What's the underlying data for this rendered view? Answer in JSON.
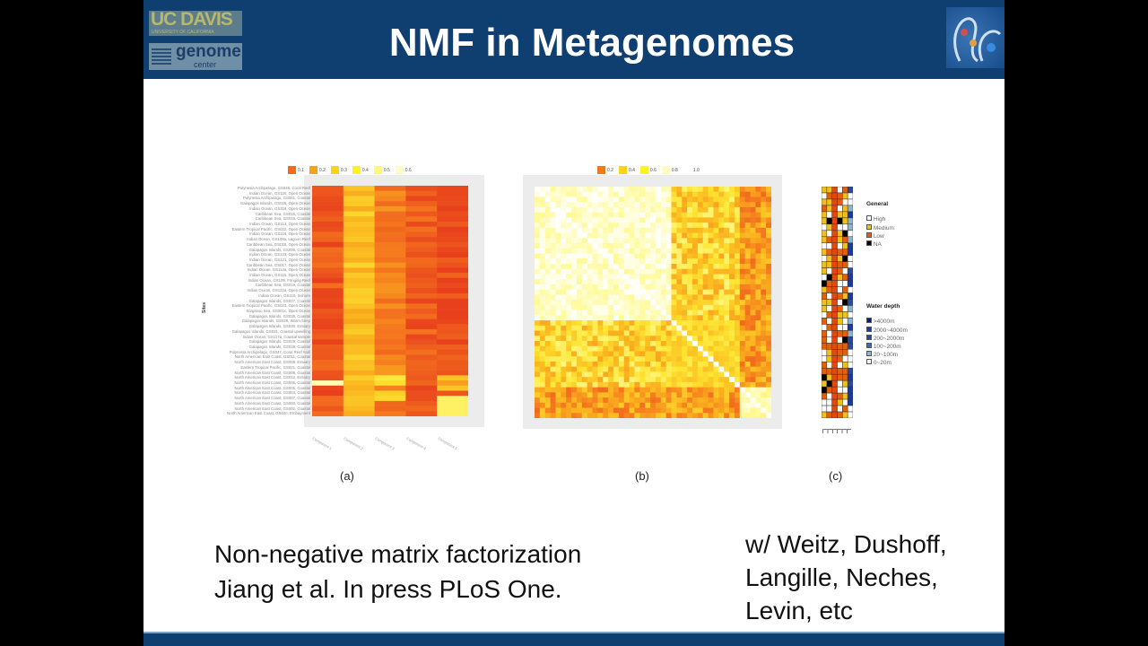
{
  "header": {
    "title": "NMF in Metagenomes",
    "logo_ucdavis": "UC DAVIS",
    "logo_ucdavis_sub": "UNIVERSITY OF CALIFORNIA",
    "logo_genome": "genome",
    "logo_genome_sub": "center"
  },
  "colors": {
    "header": "#0f3f70",
    "heat_low": "#e8401c",
    "heat_high": "#ffffff"
  },
  "figure_a": {
    "caption": "(a)",
    "legend": [
      "0.1",
      "0.2",
      "0.3",
      "0.4",
      "0.5",
      "0.6"
    ],
    "y_axis_label": "Sites",
    "x_labels": [
      "Component 1",
      "Component 2",
      "Component 3",
      "Component 4",
      "Component 5"
    ],
    "rows": [
      "Polynesia Archipelago, GS048, Coral Reef",
      "Indian Ocean, GS120, Open Ocean",
      "Polynesia Archipelago, GS051, Coastal",
      "Galapagos Islands, GS026, Open Ocean",
      "Indian Ocean, GS119, Open Ocean",
      "Caribbean Sea, GS015, Coastal",
      "Caribbean Sea, GS016, Coastal",
      "Indian Ocean, GS113, Open Ocean",
      "Eastern Tropical Pacific, GS022, Open Ocean",
      "Indian Ocean, GS116, Open Ocean",
      "Indian Ocean, GS108a, Lagoon Reef",
      "Caribbean Sea, GS018, Open Ocean",
      "Galapagos Islands, GS036, Coastal",
      "Indian Ocean, GS123, Open Ocean",
      "Indian Ocean, GS121, Open Ocean",
      "Caribbean Sea, GS017, Open Ocean",
      "Indian Ocean, GS112a, Open Ocean",
      "Indian Ocean, GS115, Open Ocean",
      "Indian Ocean, GS109, Fringing Reef",
      "Caribbean Sea, GS019, Coastal",
      "Indian Ocean, GS122a, Open Ocean",
      "Indian Ocean, GS110, Inshore",
      "Galapagos Islands, GS027, Coastal",
      "Eastern Tropical Pacific, GS023, Open Ocean",
      "Sargasso Sea, GS001c, Open Ocean",
      "Galapagos Islands, GS035, Coastal",
      "Galapagos Islands, GS028, Warm Seep",
      "Galapagos Islands, GS030, Estuary",
      "Galapagos Islands, GS031, Coastal upwelling",
      "Indian Ocean, GS117a, Coastal sample",
      "Galapagos Islands, GS029, Coastal",
      "Galapagos Islands, GS028, Coastal",
      "Polynesia Archipelago, GS047, Coral Reef Atoll",
      "North American East Coast, GS011, Coastal",
      "North American East Coast, GS009, Estuary",
      "Eastern Tropical Pacific, GS021, Coastal",
      "North American East Coast, GS008, Coastal",
      "North American East Coast, GS012, Estuary",
      "North American East Coast, GS006, Coastal",
      "North American East Coast, GS005, Coastal",
      "North American East Coast, GS004, Coastal",
      "North American East Coast, GS007, Coastal",
      "North American East Coast, GS003, Coastal",
      "North American East Coast, GS002, Coastal",
      "North American East Coast, GS020, Embayment"
    ]
  },
  "figure_b": {
    "caption": "(b)",
    "legend": [
      "0.2",
      "0.4",
      "0.6",
      "0.8",
      "1.0"
    ]
  },
  "figure_c": {
    "caption": "(c)",
    "general_title": "General",
    "general_items": [
      "High",
      "Medium",
      "Low",
      "NA"
    ],
    "depth_title": "Water depth",
    "depth_items": [
      ">4000m",
      "2000~4000m",
      "200~2000m",
      "100~200m",
      "20~100m",
      "0~20m"
    ]
  },
  "body": {
    "line1": "Non-negative matrix factorization",
    "line2": "Jiang et al. In press PLoS One.",
    "credits1": "w/ Weitz, Dushoff,",
    "credits2": "Langille, Neches,",
    "credits3": "Levin, etc"
  }
}
